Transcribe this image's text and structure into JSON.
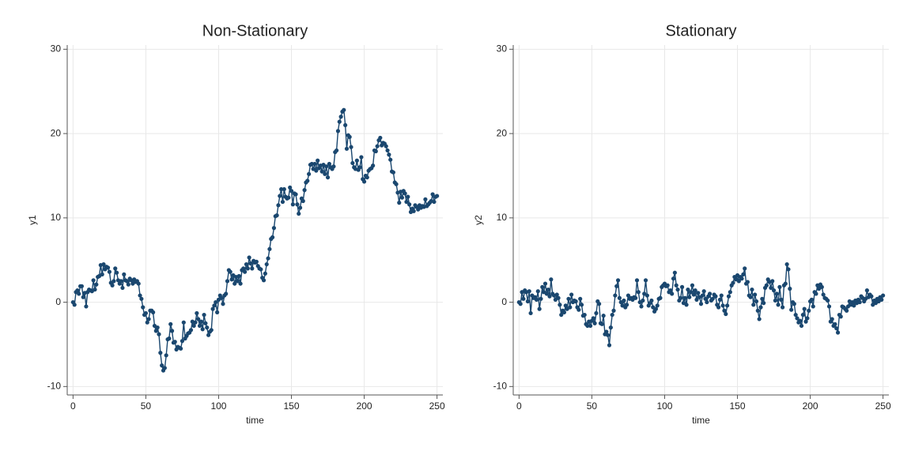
{
  "chart_data": [
    {
      "type": "line",
      "title": "Non-Stationary",
      "xlabel": "time",
      "ylabel": "y1",
      "color": "#1a476f",
      "markers": true,
      "grid": true,
      "xlim": [
        -4,
        254
      ],
      "ylim": [
        -11,
        30.5
      ],
      "xticks": [
        0,
        50,
        100,
        150,
        200,
        250
      ],
      "yticks": [
        -10,
        0,
        10,
        20,
        30
      ],
      "x": [
        0,
        1,
        2,
        3,
        4,
        5,
        6,
        7,
        8,
        9,
        10,
        11,
        12,
        13,
        14,
        15,
        16,
        17,
        18,
        19,
        20,
        21,
        22,
        23,
        24,
        25,
        26,
        27,
        28,
        29,
        30,
        31,
        32,
        33,
        34,
        35,
        36,
        37,
        38,
        39,
        40,
        41,
        42,
        43,
        44,
        45,
        46,
        47,
        48,
        49,
        50,
        51,
        52,
        53,
        54,
        55,
        56,
        57,
        58,
        59,
        60,
        61,
        62,
        63,
        64,
        65,
        66,
        67,
        68,
        69,
        70,
        71,
        72,
        73,
        74,
        75,
        76,
        77,
        78,
        79,
        80,
        81,
        82,
        83,
        84,
        85,
        86,
        87,
        88,
        89,
        90,
        91,
        92,
        93,
        94,
        95,
        96,
        97,
        98,
        99,
        100,
        101,
        102,
        103,
        104,
        105,
        106,
        107,
        108,
        109,
        110,
        111,
        112,
        113,
        114,
        115,
        116,
        117,
        118,
        119,
        120,
        121,
        122,
        123,
        124,
        125,
        126,
        127,
        128,
        129,
        130,
        131,
        132,
        133,
        134,
        135,
        136,
        137,
        138,
        139,
        140,
        141,
        142,
        143,
        144,
        145,
        146,
        147,
        148,
        149,
        150,
        151,
        152,
        153,
        154,
        155,
        156,
        157,
        158,
        159,
        160,
        161,
        162,
        163,
        164,
        165,
        166,
        167,
        168,
        169,
        170,
        171,
        172,
        173,
        174,
        175,
        176,
        177,
        178,
        179,
        180,
        181,
        182,
        183,
        184,
        185,
        186,
        187,
        188,
        189,
        190,
        191,
        192,
        193,
        194,
        195,
        196,
        197,
        198,
        199,
        200,
        201,
        202,
        203,
        204,
        205,
        206,
        207,
        208,
        209,
        210,
        211,
        212,
        213,
        214,
        215,
        216,
        217,
        218,
        219,
        220,
        221,
        222,
        223,
        224,
        225,
        226,
        227,
        228,
        229,
        230,
        231,
        232,
        233,
        234,
        235,
        236,
        237,
        238,
        239,
        240,
        241,
        242,
        243,
        244,
        245,
        246,
        247,
        248,
        249,
        250
      ],
      "values": [
        0,
        -0.3,
        1.2,
        1.4,
        1.0,
        1.9,
        1.9,
        0.6,
        1.1,
        -0.5,
        1.2,
        1.5,
        1.4,
        1.3,
        2.6,
        1.5,
        2.1,
        3.0,
        3.1,
        4.4,
        3.3,
        4.5,
        3.9,
        4.2,
        4.1,
        3.6,
        2.3,
        2.0,
        2.5,
        4.0,
        3.5,
        2.6,
        2.2,
        2.5,
        1.7,
        3.3,
        2.6,
        2.5,
        2.1,
        2.8,
        2.6,
        2.2,
        2.7,
        2.4,
        2.5,
        2.2,
        0.8,
        0.4,
        -0.6,
        -1.5,
        -1.3,
        -2.4,
        -2.0,
        -1.0,
        -1.0,
        -1.2,
        -2.8,
        -3.4,
        -3.0,
        -3.8,
        -6.0,
        -7.5,
        -8.1,
        -7.8,
        -6.3,
        -4.4,
        -4.3,
        -2.6,
        -3.4,
        -4.8,
        -4.7,
        -5.6,
        -5.3,
        -5.4,
        -5.5,
        -4.6,
        -2.4,
        -4.3,
        -4.0,
        -3.7,
        -3.6,
        -3.3,
        -2.3,
        -2.8,
        -2.4,
        -1.3,
        -2.0,
        -2.8,
        -2.3,
        -3.2,
        -1.5,
        -2.5,
        -3.0,
        -3.9,
        -3.5,
        -3.3,
        -0.8,
        -0.4,
        0.0,
        -1.2,
        0.3,
        0.8,
        0.5,
        -0.2,
        0.8,
        1.0,
        2.5,
        3.8,
        3.6,
        2.7,
        3.2,
        2.2,
        3.0,
        2.5,
        3.1,
        2.2,
        3.8,
        4.0,
        3.6,
        4.5,
        4.0,
        5.3,
        4.6,
        4.0,
        4.9,
        4.7,
        4.8,
        4.3,
        4.0,
        3.9,
        2.9,
        2.6,
        3.4,
        4.5,
        5.2,
        6.3,
        7.5,
        7.7,
        8.8,
        10.2,
        10.3,
        11.5,
        12.6,
        13.4,
        11.9,
        13.4,
        12.5,
        12.3,
        12.4,
        13.6,
        13.2,
        11.6,
        12.9,
        12.8,
        11.6,
        10.5,
        11.2,
        12.3,
        12.0,
        13.3,
        14.2,
        14.4,
        15.2,
        16.3,
        16.4,
        15.8,
        16.4,
        15.6,
        16.8,
        15.9,
        16.2,
        15.5,
        16.3,
        15.2,
        16.1,
        14.8,
        16.4,
        16.0,
        15.8,
        16.1,
        17.8,
        18.0,
        20.3,
        21.4,
        22.0,
        22.6,
        22.8,
        21.0,
        18.2,
        19.8,
        19.6,
        18.4,
        16.5,
        16.0,
        15.8,
        16.8,
        15.7,
        16.0,
        17.2,
        14.6,
        14.3,
        15.0,
        14.8,
        15.6,
        15.8,
        15.9,
        16.2,
        18.0,
        17.9,
        18.5,
        19.2,
        19.5,
        18.6,
        18.9,
        18.8,
        18.5,
        18.0,
        17.5,
        16.9,
        15.5,
        15.4,
        14.2,
        14.0,
        13.0,
        11.8,
        13.1,
        12.4,
        13.2,
        12.9,
        11.9,
        12.5,
        11.6,
        10.7,
        11.1,
        10.8,
        11.5,
        11.3,
        11.0,
        11.5,
        11.2,
        11.4,
        11.3,
        12.2,
        11.4,
        11.6,
        11.8,
        12.0,
        12.8,
        11.9,
        12.5,
        12.6
      ]
    },
    {
      "type": "line",
      "title": "Stationary",
      "xlabel": "time",
      "ylabel": "y2",
      "color": "#1a476f",
      "markers": true,
      "grid": true,
      "xlim": [
        -4,
        254
      ],
      "ylim": [
        -11,
        30.5
      ],
      "xticks": [
        0,
        50,
        100,
        150,
        200,
        250
      ],
      "yticks": [
        -10,
        0,
        10,
        20,
        30
      ],
      "x": [
        0,
        1,
        2,
        3,
        4,
        5,
        6,
        7,
        8,
        9,
        10,
        11,
        12,
        13,
        14,
        15,
        16,
        17,
        18,
        19,
        20,
        21,
        22,
        23,
        24,
        25,
        26,
        27,
        28,
        29,
        30,
        31,
        32,
        33,
        34,
        35,
        36,
        37,
        38,
        39,
        40,
        41,
        42,
        43,
        44,
        45,
        46,
        47,
        48,
        49,
        50,
        51,
        52,
        53,
        54,
        55,
        56,
        57,
        58,
        59,
        60,
        61,
        62,
        63,
        64,
        65,
        66,
        67,
        68,
        69,
        70,
        71,
        72,
        73,
        74,
        75,
        76,
        77,
        78,
        79,
        80,
        81,
        82,
        83,
        84,
        85,
        86,
        87,
        88,
        89,
        90,
        91,
        92,
        93,
        94,
        95,
        96,
        97,
        98,
        99,
        100,
        101,
        102,
        103,
        104,
        105,
        106,
        107,
        108,
        109,
        110,
        111,
        112,
        113,
        114,
        115,
        116,
        117,
        118,
        119,
        120,
        121,
        122,
        123,
        124,
        125,
        126,
        127,
        128,
        129,
        130,
        131,
        132,
        133,
        134,
        135,
        136,
        137,
        138,
        139,
        140,
        141,
        142,
        143,
        144,
        145,
        146,
        147,
        148,
        149,
        150,
        151,
        152,
        153,
        154,
        155,
        156,
        157,
        158,
        159,
        160,
        161,
        162,
        163,
        164,
        165,
        166,
        167,
        168,
        169,
        170,
        171,
        172,
        173,
        174,
        175,
        176,
        177,
        178,
        179,
        180,
        181,
        182,
        183,
        184,
        185,
        186,
        187,
        188,
        189,
        190,
        191,
        192,
        193,
        194,
        195,
        196,
        197,
        198,
        199,
        200,
        201,
        202,
        203,
        204,
        205,
        206,
        207,
        208,
        209,
        210,
        211,
        212,
        213,
        214,
        215,
        216,
        217,
        218,
        219,
        220,
        221,
        222,
        223,
        224,
        225,
        226,
        227,
        228,
        229,
        230,
        231,
        232,
        233,
        234,
        235,
        236,
        237,
        238,
        239,
        240,
        241,
        242,
        243,
        244,
        245,
        246,
        247,
        248,
        249,
        250
      ],
      "values": [
        0.0,
        -0.2,
        1.2,
        0.4,
        1.4,
        1.2,
        0.1,
        1.3,
        -1.3,
        0.8,
        0.5,
        0.6,
        0.3,
        1.3,
        -0.8,
        0.4,
        1.8,
        1.2,
        2.2,
        1.0,
        1.5,
        0.7,
        2.7,
        1.0,
        0.8,
        0.3,
        0.9,
        0.5,
        -0.3,
        -1.5,
        -1.0,
        -1.2,
        -0.4,
        -0.8,
        0.4,
        -0.6,
        0.9,
        0.0,
        0.2,
        0.1,
        -0.6,
        -0.9,
        0.4,
        -0.3,
        -1.6,
        -1.5,
        -2.6,
        -2.8,
        -2.3,
        -2.8,
        -2.2,
        -1.9,
        -2.5,
        -1.3,
        0.1,
        -0.2,
        -2.5,
        -2.6,
        -1.6,
        -3.8,
        -3.5,
        -3.9,
        -5.1,
        -3.0,
        -1.5,
        -1.0,
        0.8,
        1.9,
        2.6,
        0.5,
        0.0,
        -0.4,
        0.2,
        -0.6,
        -0.3,
        0.8,
        0.4,
        0.5,
        0.3,
        0.6,
        0.5,
        2.6,
        1.2,
        0.0,
        -0.5,
        0.2,
        1.0,
        2.6,
        0.8,
        -0.4,
        -0.1,
        0.2,
        -0.6,
        -1.1,
        -0.8,
        -0.4,
        0.4,
        0.5,
        1.8,
        2.0,
        2.2,
        1.9,
        2.0,
        1.2,
        1.4,
        1.0,
        2.8,
        3.5,
        2.0,
        1.5,
        0.2,
        0.5,
        1.8,
        -0.1,
        0.5,
        -0.3,
        1.5,
        0.6,
        1.2,
        2.0,
        0.9,
        1.4,
        0.3,
        1.1,
        0.6,
        -0.2,
        0.8,
        1.3,
        0.4,
        0.0,
        0.7,
        1.0,
        0.2,
        0.4,
        0.9,
        0.7,
        -0.3,
        -0.6,
        0.3,
        0.8,
        -0.4,
        -1.0,
        -1.4,
        -0.4,
        0.7,
        1.2,
        2.0,
        2.3,
        3.0,
        2.7,
        3.2,
        2.5,
        3.0,
        2.8,
        3.3,
        4.0,
        2.2,
        2.4,
        0.8,
        0.6,
        1.5,
        -0.3,
        0.9,
        0.1,
        -1.0,
        -2.0,
        -0.6,
        0.4,
        -0.1,
        1.7,
        2.0,
        2.7,
        2.4,
        1.7,
        2.5,
        1.4,
        0.2,
        1.0,
        -0.3,
        1.8,
        0.3,
        -0.6,
        2.0,
        2.2,
        4.5,
        3.9,
        1.6,
        -0.9,
        0.0,
        -0.2,
        -1.5,
        -1.9,
        -2.4,
        -2.2,
        -2.8,
        -1.5,
        -0.8,
        -2.3,
        -1.9,
        -1.0,
        0.1,
        0.3,
        -0.5,
        1.2,
        1.0,
        2.0,
        1.6,
        2.1,
        1.8,
        0.9,
        0.5,
        0.4,
        0.2,
        -0.5,
        -2.3,
        -2.0,
        -2.8,
        -2.6,
        -3.1,
        -3.6,
        -1.5,
        -1.7,
        -0.5,
        -0.6,
        -0.8,
        -1.0,
        -0.5,
        0.1,
        -0.3,
        0.0,
        -0.4,
        0.2,
        -0.1,
        0.3,
        0.0,
        0.7,
        0.5,
        0.1,
        0.4,
        1.4,
        0.6,
        0.9,
        0.7,
        -0.3,
        0.2,
        -0.1,
        0.4,
        0.1,
        0.6,
        0.3,
        0.8
      ]
    }
  ]
}
